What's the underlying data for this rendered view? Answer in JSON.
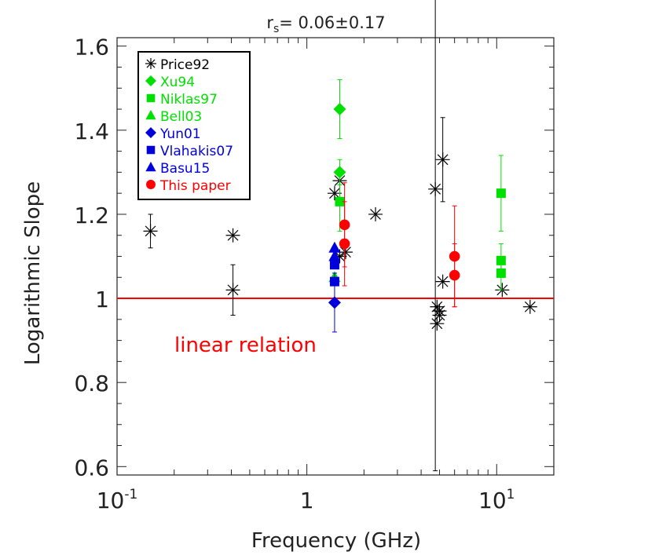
{
  "chart_data": {
    "type": "scatter",
    "title": "r_s= 0.06±0.17",
    "title_main": "r",
    "title_sub": "s",
    "title_rest": "= 0.06±0.17",
    "xlabel": "Frequency (GHz)",
    "ylabel": "Logarithmic Slope",
    "x_scale": "log",
    "xlim": [
      0.1,
      20
    ],
    "ylim": [
      0.58,
      1.62
    ],
    "x_ticks": [
      {
        "value": 0.1,
        "base": "10",
        "exp": "-1"
      },
      {
        "value": 1,
        "base": "1",
        "exp": ""
      },
      {
        "value": 10,
        "base": "10",
        "exp": "1"
      }
    ],
    "y_ticks": [
      {
        "value": 0.6,
        "label": "0.6"
      },
      {
        "value": 0.8,
        "label": "0.8"
      },
      {
        "value": 1.0,
        "label": "1"
      },
      {
        "value": 1.2,
        "label": "1.2"
      },
      {
        "value": 1.4,
        "label": "1.4"
      },
      {
        "value": 1.6,
        "label": "1.6"
      }
    ],
    "grid": false,
    "legend_position": "top-left",
    "reference_line": {
      "y": 1.0,
      "color": "#ff0000",
      "label": "linear relation"
    },
    "series": [
      {
        "name": "Price92",
        "marker": "asterisk",
        "color": "#000000",
        "points": [
          {
            "x": 0.15,
            "y": 1.16,
            "err": 0.04
          },
          {
            "x": 0.408,
            "y": 1.15,
            "err": 0
          },
          {
            "x": 0.408,
            "y": 1.02,
            "err": 0.06
          },
          {
            "x": 1.4,
            "y": 1.25,
            "err": 0
          },
          {
            "x": 1.49,
            "y": 1.28,
            "err": 0
          },
          {
            "x": 1.49,
            "y": 1.1,
            "err": 0
          },
          {
            "x": 1.6,
            "y": 1.11,
            "err": 0
          },
          {
            "x": 2.3,
            "y": 1.2,
            "err": 0
          },
          {
            "x": 4.75,
            "y": 1.26,
            "err": 0.67
          },
          {
            "x": 4.85,
            "y": 0.98,
            "err": 0
          },
          {
            "x": 4.85,
            "y": 0.94,
            "err": 0
          },
          {
            "x": 5.0,
            "y": 0.97,
            "err": 0
          },
          {
            "x": 5.0,
            "y": 0.96,
            "err": 0
          },
          {
            "x": 5.2,
            "y": 1.33,
            "err": 0.1
          },
          {
            "x": 5.2,
            "y": 1.04,
            "err": 0
          },
          {
            "x": 10.7,
            "y": 1.02,
            "err": 0
          },
          {
            "x": 15.0,
            "y": 0.98,
            "err": 0
          }
        ]
      },
      {
        "name": "Xu94",
        "marker": "diamond",
        "color": "#00e000",
        "points": [
          {
            "x": 1.49,
            "y": 1.45,
            "err": 0.07
          },
          {
            "x": 1.49,
            "y": 1.3,
            "err": 0.03
          }
        ]
      },
      {
        "name": "Niklas97",
        "marker": "square",
        "color": "#00e000",
        "points": [
          {
            "x": 1.49,
            "y": 1.23,
            "err": 0.07
          },
          {
            "x": 10.55,
            "y": 1.25,
            "err": 0.09
          },
          {
            "x": 10.55,
            "y": 1.09,
            "err": 0.04
          },
          {
            "x": 10.55,
            "y": 1.06,
            "err": 0.04
          }
        ]
      },
      {
        "name": "Bell03",
        "marker": "triangle",
        "color": "#00e000",
        "points": [
          {
            "x": 1.4,
            "y": 1.05,
            "err": 0
          }
        ]
      },
      {
        "name": "Yun01",
        "marker": "diamond",
        "color": "#0000dd",
        "points": [
          {
            "x": 1.4,
            "y": 0.99,
            "err": 0.07
          }
        ]
      },
      {
        "name": "Vlahakis07",
        "marker": "square",
        "color": "#0000dd",
        "points": [
          {
            "x": 1.4,
            "y": 1.08,
            "err": 0
          },
          {
            "x": 1.4,
            "y": 1.04,
            "err": 0
          }
        ]
      },
      {
        "name": "Basu15",
        "marker": "triangle",
        "color": "#0000dd",
        "points": [
          {
            "x": 1.4,
            "y": 1.12,
            "err": 0
          },
          {
            "x": 1.4,
            "y": 1.1,
            "err": 0
          }
        ]
      },
      {
        "name": "This paper",
        "marker": "circle",
        "color": "#ff0000",
        "points": [
          {
            "x": 1.58,
            "y": 1.175,
            "err": 0.1
          },
          {
            "x": 1.58,
            "y": 1.13,
            "err": 0.1
          },
          {
            "x": 6.0,
            "y": 1.1,
            "err": 0.12
          },
          {
            "x": 6.0,
            "y": 1.055,
            "err": 0.075
          }
        ]
      }
    ]
  }
}
